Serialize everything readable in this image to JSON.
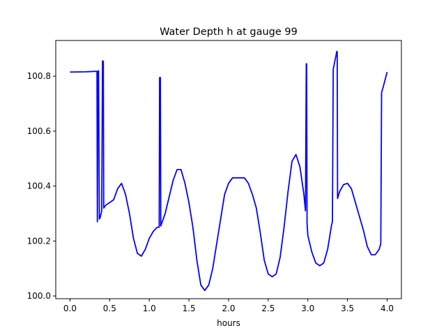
{
  "chart_data": {
    "type": "line",
    "title": "Water Depth h at gauge 99",
    "xlabel": "hours",
    "ylabel": "",
    "xlim": [
      -0.18,
      4.18
    ],
    "ylim": [
      99.99,
      100.93
    ],
    "grid": false,
    "xticks": [
      0.0,
      0.5,
      1.0,
      1.5,
      2.0,
      2.5,
      3.0,
      3.5,
      4.0
    ],
    "xtick_labels": [
      "0.0",
      "0.5",
      "1.0",
      "1.5",
      "2.0",
      "2.5",
      "3.0",
      "3.5",
      "4.0"
    ],
    "yticks": [
      100.0,
      100.2,
      100.4,
      100.6,
      100.8
    ],
    "ytick_labels": [
      "100.0",
      "100.2",
      "100.4",
      "100.6",
      "100.8"
    ],
    "series": [
      {
        "color": "#0000ff",
        "points": [
          [
            0.0,
            100.815
          ],
          [
            0.2,
            100.816
          ],
          [
            0.34,
            100.818
          ],
          [
            0.345,
            100.27
          ],
          [
            0.35,
            100.815
          ],
          [
            0.36,
            100.82
          ],
          [
            0.37,
            100.28
          ],
          [
            0.38,
            100.285
          ],
          [
            0.4,
            100.31
          ],
          [
            0.41,
            100.855
          ],
          [
            0.42,
            100.855
          ],
          [
            0.425,
            100.32
          ],
          [
            0.45,
            100.33
          ],
          [
            0.5,
            100.34
          ],
          [
            0.55,
            100.35
          ],
          [
            0.6,
            100.39
          ],
          [
            0.65,
            100.41
          ],
          [
            0.7,
            100.37
          ],
          [
            0.75,
            100.3
          ],
          [
            0.8,
            100.21
          ],
          [
            0.85,
            100.155
          ],
          [
            0.9,
            100.145
          ],
          [
            0.95,
            100.17
          ],
          [
            1.0,
            100.21
          ],
          [
            1.05,
            100.235
          ],
          [
            1.1,
            100.25
          ],
          [
            1.125,
            100.25
          ],
          [
            1.13,
            100.795
          ],
          [
            1.14,
            100.795
          ],
          [
            1.145,
            100.255
          ],
          [
            1.2,
            100.3
          ],
          [
            1.25,
            100.36
          ],
          [
            1.3,
            100.42
          ],
          [
            1.35,
            100.46
          ],
          [
            1.4,
            100.46
          ],
          [
            1.45,
            100.41
          ],
          [
            1.5,
            100.34
          ],
          [
            1.55,
            100.25
          ],
          [
            1.6,
            100.13
          ],
          [
            1.65,
            100.04
          ],
          [
            1.7,
            100.02
          ],
          [
            1.75,
            100.04
          ],
          [
            1.8,
            100.1
          ],
          [
            1.85,
            100.19
          ],
          [
            1.9,
            100.28
          ],
          [
            1.95,
            100.37
          ],
          [
            2.0,
            100.41
          ],
          [
            2.05,
            100.43
          ],
          [
            2.1,
            100.43
          ],
          [
            2.2,
            100.43
          ],
          [
            2.25,
            100.41
          ],
          [
            2.3,
            100.37
          ],
          [
            2.35,
            100.32
          ],
          [
            2.4,
            100.23
          ],
          [
            2.45,
            100.13
          ],
          [
            2.5,
            100.08
          ],
          [
            2.55,
            100.07
          ],
          [
            2.6,
            100.08
          ],
          [
            2.65,
            100.14
          ],
          [
            2.7,
            100.25
          ],
          [
            2.75,
            100.38
          ],
          [
            2.8,
            100.49
          ],
          [
            2.85,
            100.515
          ],
          [
            2.9,
            100.47
          ],
          [
            2.95,
            100.37
          ],
          [
            2.97,
            100.31
          ],
          [
            2.98,
            100.845
          ],
          [
            2.985,
            100.845
          ],
          [
            2.99,
            100.265
          ],
          [
            3.0,
            100.22
          ],
          [
            3.05,
            100.16
          ],
          [
            3.1,
            100.12
          ],
          [
            3.15,
            100.11
          ],
          [
            3.2,
            100.12
          ],
          [
            3.25,
            100.17
          ],
          [
            3.3,
            100.26
          ],
          [
            3.31,
            100.27
          ],
          [
            3.32,
            100.825
          ],
          [
            3.365,
            100.89
          ],
          [
            3.37,
            100.89
          ],
          [
            3.375,
            100.355
          ],
          [
            3.4,
            100.38
          ],
          [
            3.45,
            100.405
          ],
          [
            3.5,
            100.41
          ],
          [
            3.55,
            100.39
          ],
          [
            3.6,
            100.34
          ],
          [
            3.65,
            100.29
          ],
          [
            3.7,
            100.24
          ],
          [
            3.75,
            100.18
          ],
          [
            3.8,
            100.15
          ],
          [
            3.85,
            100.15
          ],
          [
            3.9,
            100.17
          ],
          [
            3.92,
            100.19
          ],
          [
            3.93,
            100.74
          ],
          [
            3.95,
            100.76
          ],
          [
            4.0,
            100.815
          ]
        ]
      }
    ]
  }
}
